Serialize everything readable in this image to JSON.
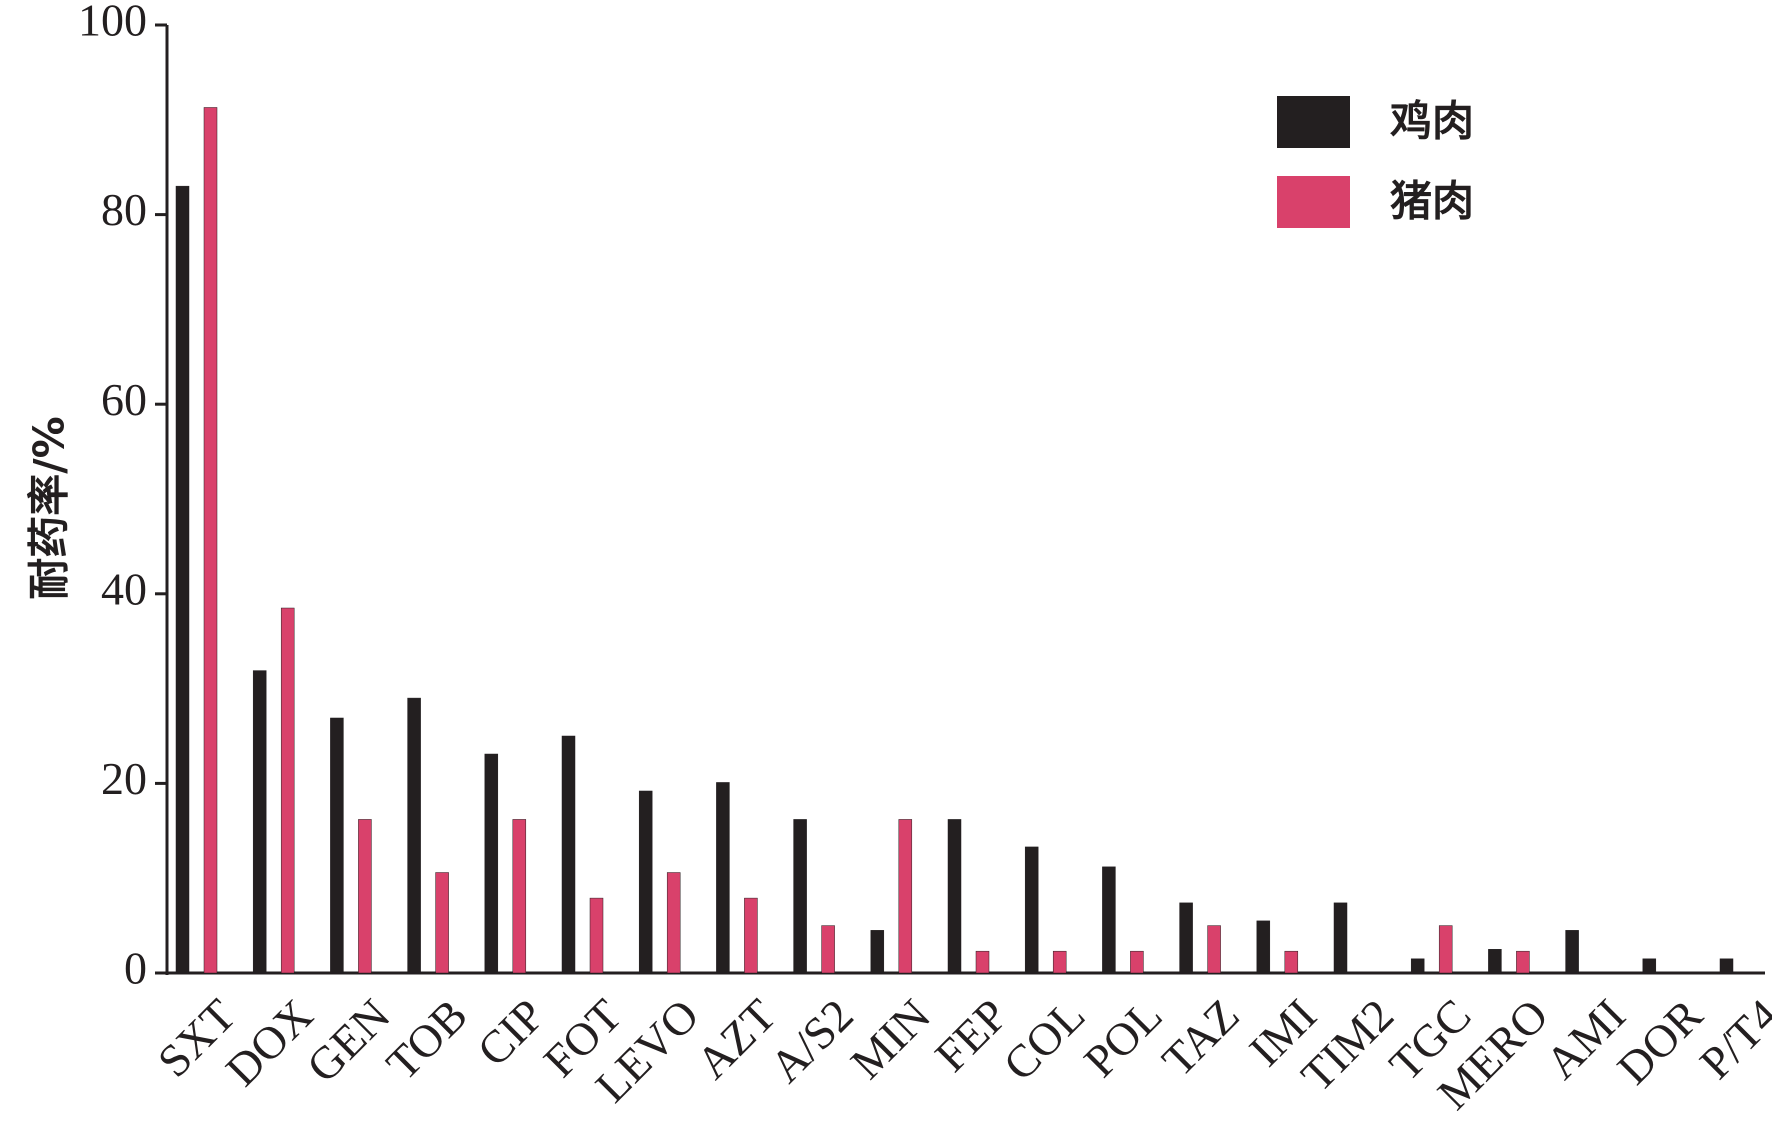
{
  "chart_data": {
    "type": "bar",
    "y_label": "耐药率/%",
    "categories": [
      "SXT",
      "DOX",
      "GEN",
      "TOB",
      "CIP",
      "FOT",
      "LEVO",
      "AZT",
      "A/S2",
      "MIN",
      "FEP",
      "COL",
      "POL",
      "TAZ",
      "IMI",
      "TIM2",
      "TGC",
      "MERO",
      "AMI",
      "DOR",
      "P/T4"
    ],
    "series": [
      {
        "name": "鸡肉",
        "color": "#231f20",
        "values": [
          83.0,
          31.9,
          26.9,
          29.0,
          23.1,
          25.0,
          19.2,
          20.1,
          16.2,
          4.5,
          16.2,
          13.3,
          11.2,
          7.4,
          5.5,
          7.4,
          1.5,
          2.5,
          4.5,
          1.5,
          1.5
        ]
      },
      {
        "name": "猪肉",
        "color": "#d9416b",
        "values": [
          91.3,
          38.5,
          16.2,
          10.6,
          16.2,
          7.9,
          10.6,
          7.9,
          5.0,
          16.2,
          2.3,
          2.3,
          2.3,
          5.0,
          2.3,
          0,
          5.0,
          2.3,
          0,
          0,
          0
        ]
      }
    ],
    "ylim": [
      0,
      100
    ],
    "yticks": [
      0,
      20,
      40,
      60,
      80,
      100
    ],
    "legend": "upper-right"
  }
}
